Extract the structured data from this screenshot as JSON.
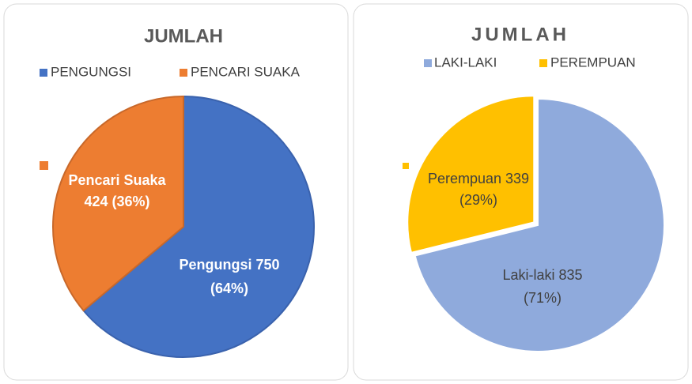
{
  "chart_data": [
    {
      "type": "pie",
      "title": "JUMLAH",
      "categories": [
        "PENGUNGSI",
        "PENCARI SUAKA"
      ],
      "values": [
        750,
        424
      ],
      "value_labels": [
        [
          "Pengungsi 750",
          "(64%)"
        ],
        [
          "Pencari Suaka",
          "424 (36%)"
        ]
      ],
      "colors": [
        "#4472c4",
        "#ed7d31"
      ]
    },
    {
      "type": "pie",
      "title": "JUMLAH",
      "categories": [
        "LAKI-LAKI",
        "PEREMPUAN"
      ],
      "values": [
        835,
        339
      ],
      "value_labels": [
        [
          "Laki-laki 835",
          "(71%)"
        ],
        [
          "Perempuan 339",
          "(29%)"
        ]
      ],
      "colors": [
        "#8faadc",
        "#ffc000"
      ]
    }
  ]
}
